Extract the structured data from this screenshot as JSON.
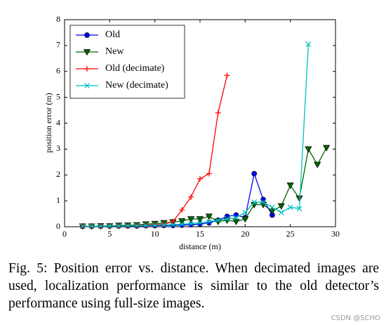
{
  "chart_data": {
    "type": "line",
    "xlabel": "distance (m)",
    "ylabel": "position error (m)",
    "xlim": [
      0,
      30
    ],
    "ylim": [
      0,
      8
    ],
    "xticks": [
      0,
      5,
      10,
      15,
      20,
      25,
      30
    ],
    "yticks": [
      0,
      1,
      2,
      3,
      4,
      5,
      6,
      7,
      8
    ],
    "legend": "upper left",
    "series": [
      {
        "name": "Old",
        "color": "#0000ff",
        "marker": "circle",
        "x": [
          2,
          3,
          4,
          5,
          6,
          7,
          8,
          9,
          10,
          11,
          12,
          13,
          14,
          15,
          16,
          17,
          18,
          19,
          20,
          21,
          22,
          23
        ],
        "values": [
          0.02,
          0.02,
          0.02,
          0.03,
          0.03,
          0.03,
          0.03,
          0.04,
          0.04,
          0.05,
          0.05,
          0.06,
          0.08,
          0.1,
          0.15,
          0.25,
          0.4,
          0.45,
          0.35,
          2.05,
          1.05,
          0.45
        ]
      },
      {
        "name": "New",
        "color": "#006400",
        "marker": "triangle-down",
        "x": [
          2,
          3,
          4,
          5,
          6,
          7,
          8,
          9,
          10,
          11,
          12,
          13,
          14,
          15,
          16,
          17,
          18,
          19,
          20,
          21,
          22,
          23,
          24,
          25,
          26,
          27,
          28,
          29
        ],
        "values": [
          0.02,
          0.02,
          0.03,
          0.03,
          0.05,
          0.06,
          0.07,
          0.1,
          0.12,
          0.15,
          0.18,
          0.22,
          0.3,
          0.3,
          0.4,
          0.2,
          0.25,
          0.2,
          0.3,
          0.85,
          0.85,
          0.6,
          0.8,
          1.6,
          1.1,
          3.0,
          2.4,
          3.05
        ]
      },
      {
        "name": "Old (decimate)",
        "color": "#ff0000",
        "marker": "plus",
        "x": [
          2,
          3,
          4,
          5,
          6,
          7,
          8,
          9,
          10,
          11,
          12,
          13,
          14,
          15,
          16,
          17,
          18
        ],
        "values": [
          0.02,
          0.02,
          0.02,
          0.03,
          0.03,
          0.04,
          0.05,
          0.06,
          0.08,
          0.1,
          0.2,
          0.65,
          1.15,
          1.85,
          2.05,
          4.4,
          5.85
        ]
      },
      {
        "name": "New (decimate)",
        "color": "#00bfbf",
        "marker": "x",
        "x": [
          2,
          3,
          4,
          5,
          6,
          7,
          8,
          9,
          10,
          11,
          12,
          13,
          14,
          15,
          16,
          17,
          18,
          19,
          20,
          21,
          22,
          23,
          24,
          25,
          26,
          27
        ],
        "values": [
          0.02,
          0.02,
          0.02,
          0.03,
          0.03,
          0.04,
          0.04,
          0.05,
          0.06,
          0.07,
          0.08,
          0.1,
          0.12,
          0.15,
          0.2,
          0.25,
          0.3,
          0.35,
          0.55,
          0.95,
          0.95,
          0.75,
          0.55,
          0.75,
          0.7,
          7.05
        ]
      }
    ]
  },
  "caption": "Fig. 5: Position error vs. distance. When decimated images are used, localization performance is similar to the old detector’s performance using full-size images.",
  "watermark": "CSDN @SCHO"
}
